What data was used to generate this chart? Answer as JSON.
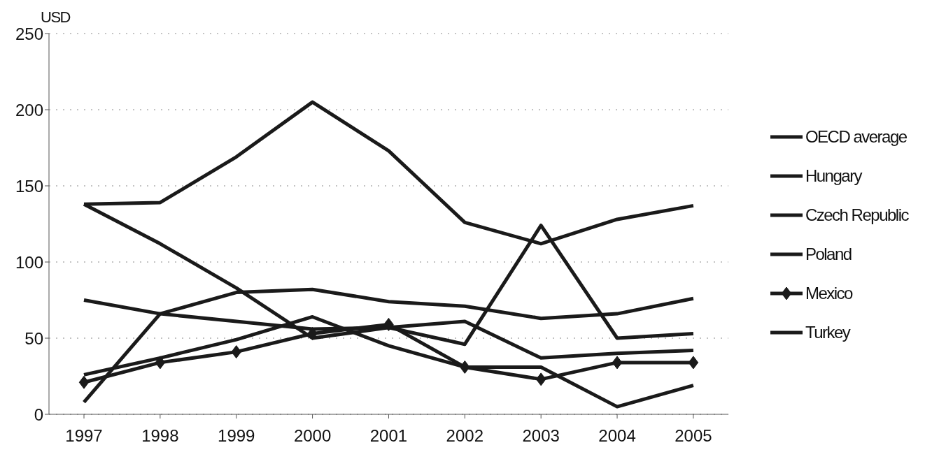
{
  "chart_data": {
    "type": "line",
    "ylabel": "USD",
    "categories": [
      "1997",
      "1998",
      "1999",
      "2000",
      "2001",
      "2002",
      "2003",
      "2004",
      "2005"
    ],
    "series": [
      {
        "name": "OECD average",
        "color": "#1a1a1a",
        "values": [
          138,
          139,
          169,
          205,
          173,
          126,
          112,
          128,
          137
        ]
      },
      {
        "name": "Hungary",
        "color": "#1a1a1a",
        "values": [
          138,
          112,
          83,
          50,
          57,
          46,
          124,
          50,
          53
        ]
      },
      {
        "name": "Czech Republic",
        "color": "#1a1a1a",
        "values": [
          8,
          66,
          80,
          82,
          74,
          71,
          63,
          66,
          76
        ]
      },
      {
        "name": "Poland",
        "color": "#1a1a1a",
        "values": [
          75,
          66,
          61,
          56,
          57,
          61,
          37,
          40,
          42
        ]
      },
      {
        "name": "Mexico",
        "color": "#1a1a1a",
        "marker": "diamond",
        "values": [
          21,
          34,
          41,
          53,
          59,
          31,
          23,
          34,
          34
        ]
      },
      {
        "name": "Turkey",
        "color": "#1a1a1a",
        "values": [
          26,
          37,
          49,
          64,
          45,
          31,
          31,
          5,
          19
        ]
      }
    ],
    "ylim": [
      0,
      250
    ],
    "yticks": [
      0,
      50,
      100,
      150,
      200,
      250
    ],
    "grid": "y",
    "legend": "right",
    "marker": "none",
    "line_style": "solid"
  }
}
